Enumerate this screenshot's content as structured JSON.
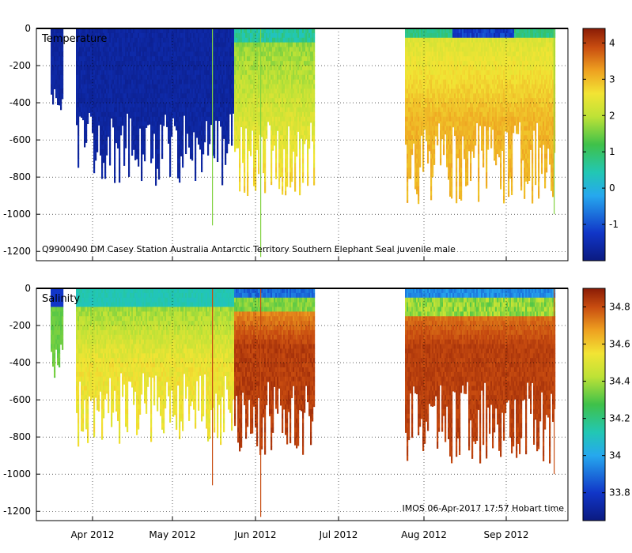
{
  "chart_data": [
    {
      "type": "heatmap",
      "title": "Temperature",
      "variable": "temperature",
      "annotation": "Q9900490 DM Casey Station Australia Antarctic Territory Southern Elephant Seal juvenile male",
      "xlabel": "",
      "ylabel": "",
      "x_ticks": [
        "Apr 2012",
        "May 2012",
        "Jun 2012",
        "Jul 2012",
        "Aug 2012",
        "Sep 2012"
      ],
      "y_ticks": [
        0,
        -200,
        -400,
        -600,
        -800,
        -1000,
        -1200
      ],
      "ylim": [
        -1250,
        0
      ],
      "colorbar": {
        "min": -2.0,
        "max": 4.4,
        "ticks": [
          -1,
          0,
          1,
          2,
          3,
          4
        ]
      },
      "grid": true
    },
    {
      "type": "heatmap",
      "title": "Salinity",
      "variable": "salinity",
      "annotation": "IMOS 06-Apr-2017 17:57 Hobart time",
      "xlabel": "",
      "ylabel": "",
      "x_ticks": [
        "Apr 2012",
        "May 2012",
        "Jun 2012",
        "Jul 2012",
        "Aug 2012",
        "Sep 2012"
      ],
      "y_ticks": [
        0,
        -200,
        -400,
        -600,
        -800,
        -1000,
        -1200
      ],
      "ylim": [
        -1250,
        0
      ],
      "colorbar": {
        "min": 33.65,
        "max": 34.9,
        "ticks": [
          33.8,
          34,
          34.2,
          34.4,
          34.6,
          34.8
        ]
      },
      "grid": true
    }
  ]
}
